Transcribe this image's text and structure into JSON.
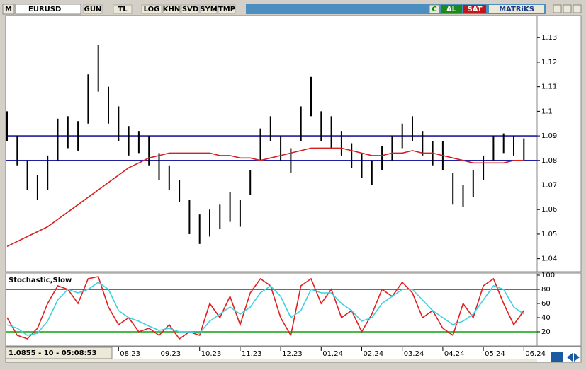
{
  "toolbar": {
    "menu": "M",
    "symbol": "EURUSD",
    "buttons": [
      "GUN",
      "TL",
      "LOG",
      "KHN",
      "SVD",
      "SYM",
      "TMP"
    ],
    "right": [
      "C",
      "AL",
      "SAT"
    ],
    "brand": "MATRiKS"
  },
  "status": "1.0855 - 10 - 05:08:53",
  "chart_data": [
    {
      "type": "hlbar",
      "categories": [
        null,
        null,
        null,
        null,
        null,
        null,
        null,
        null,
        null,
        null,
        null,
        "08.23",
        null,
        null,
        null,
        "09.23",
        null,
        null,
        null,
        "10.23",
        null,
        null,
        null,
        "11.23",
        null,
        null,
        null,
        "12.23",
        null,
        null,
        null,
        "01.24",
        null,
        null,
        null,
        "02.24",
        null,
        null,
        null,
        "03.24",
        null,
        null,
        null,
        "04.24",
        null,
        null,
        null,
        "05.24",
        null,
        null,
        null,
        "06.24"
      ],
      "high": [
        1.1,
        1.09,
        1.08,
        1.074,
        1.082,
        1.097,
        1.098,
        1.096,
        1.115,
        1.127,
        1.11,
        1.102,
        1.094,
        1.092,
        1.09,
        1.083,
        1.078,
        1.072,
        1.064,
        1.058,
        1.06,
        1.062,
        1.067,
        1.064,
        1.076,
        1.093,
        1.098,
        1.09,
        1.085,
        1.102,
        1.114,
        1.1,
        1.098,
        1.092,
        1.087,
        1.083,
        1.08,
        1.086,
        1.09,
        1.095,
        1.098,
        1.092,
        1.088,
        1.088,
        1.075,
        1.07,
        1.076,
        1.082,
        1.09,
        1.091,
        1.09,
        1.089
      ],
      "low": [
        1.088,
        1.078,
        1.068,
        1.064,
        1.068,
        1.08,
        1.085,
        1.084,
        1.095,
        1.108,
        1.095,
        1.088,
        1.082,
        1.083,
        1.078,
        1.072,
        1.068,
        1.063,
        1.05,
        1.046,
        1.049,
        1.052,
        1.055,
        1.053,
        1.066,
        1.08,
        1.088,
        1.08,
        1.075,
        1.088,
        1.098,
        1.088,
        1.085,
        1.082,
        1.077,
        1.073,
        1.07,
        1.076,
        1.08,
        1.085,
        1.088,
        1.082,
        1.078,
        1.076,
        1.062,
        1.061,
        1.065,
        1.072,
        1.08,
        1.083,
        1.082,
        1.08
      ],
      "bar_color": "#000000",
      "series": [
        {
          "color": "#d42020",
          "values": [
            1.045,
            1.047,
            1.049,
            1.051,
            1.053,
            1.056,
            1.059,
            1.062,
            1.065,
            1.068,
            1.071,
            1.074,
            1.077,
            1.079,
            1.081,
            1.082,
            1.083,
            1.083,
            1.083,
            1.083,
            1.083,
            1.082,
            1.082,
            1.081,
            1.081,
            1.08,
            1.081,
            1.082,
            1.083,
            1.084,
            1.085,
            1.085,
            1.085,
            1.085,
            1.084,
            1.083,
            1.082,
            1.082,
            1.083,
            1.083,
            1.084,
            1.083,
            1.083,
            1.082,
            1.081,
            1.08,
            1.079,
            1.079,
            1.079,
            1.079,
            1.08,
            1.08
          ]
        }
      ],
      "hlines": {
        "values": [
          1.09,
          1.08
        ],
        "color": "#2020a0"
      },
      "ylim": [
        1.035,
        1.139
      ],
      "yticks": [
        1.04,
        1.05,
        1.06,
        1.07,
        1.08,
        1.09,
        1.1,
        1.11,
        1.12,
        1.13
      ]
    },
    {
      "type": "line",
      "title": "Stochastic,Slow",
      "series": [
        {
          "color": "#e02020",
          "values": [
            40,
            15,
            10,
            25,
            60,
            85,
            80,
            60,
            95,
            98,
            55,
            30,
            40,
            20,
            25,
            15,
            30,
            10,
            20,
            15,
            60,
            40,
            70,
            30,
            75,
            95,
            85,
            40,
            15,
            85,
            95,
            60,
            80,
            40,
            50,
            20,
            45,
            80,
            70,
            90,
            75,
            40,
            50,
            25,
            15,
            60,
            40,
            85,
            95,
            60,
            30,
            50
          ]
        },
        {
          "color": "#40d0e0",
          "values": [
            30,
            25,
            15,
            18,
            35,
            65,
            80,
            75,
            80,
            90,
            80,
            50,
            40,
            35,
            28,
            22,
            25,
            20,
            20,
            18,
            35,
            45,
            55,
            45,
            55,
            75,
            85,
            70,
            40,
            50,
            80,
            75,
            75,
            60,
            50,
            35,
            40,
            60,
            70,
            80,
            80,
            65,
            50,
            40,
            30,
            35,
            45,
            65,
            85,
            80,
            55,
            45
          ]
        }
      ],
      "hlines": {
        "values": [
          80,
          20
        ],
        "colors": [
          "#a01010",
          "#10a010"
        ]
      },
      "ylim": [
        0,
        102
      ],
      "yticks": [
        20,
        40,
        60,
        80,
        100
      ]
    }
  ]
}
